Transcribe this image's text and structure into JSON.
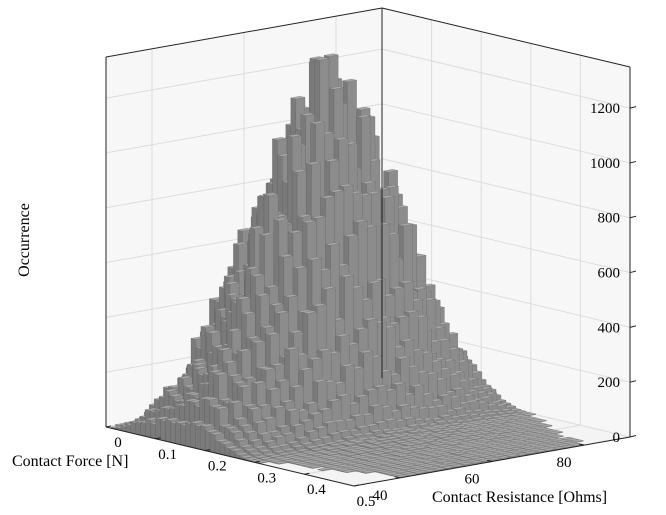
{
  "chart_data": {
    "type": "3d-histogram",
    "xlabel": "Contact Resistance [Ohms]",
    "ylabel": "Contact Force [N]",
    "zlabel": "Occurrence",
    "xlim": [
      0,
      0.5
    ],
    "ylim": [
      30,
      90
    ],
    "zlim": [
      0,
      1350
    ],
    "x_ticks": [
      "0",
      "0.1",
      "0.2",
      "0.3",
      "0.4",
      "0.5"
    ],
    "y_ticks": [
      "40",
      "60",
      "80"
    ],
    "z_ticks": [
      "0",
      "200",
      "400",
      "600",
      "800",
      "1000",
      "1200"
    ],
    "grid": true,
    "bar_color": "#8c8c8c",
    "resistance_profile": {
      "x": [
        0.0,
        0.01,
        0.02,
        0.03,
        0.04,
        0.05,
        0.06,
        0.07,
        0.08,
        0.09,
        0.1,
        0.11,
        0.12,
        0.13,
        0.14,
        0.15,
        0.16,
        0.17,
        0.18,
        0.19,
        0.2,
        0.21,
        0.22,
        0.23,
        0.24,
        0.25,
        0.26,
        0.27,
        0.28,
        0.29,
        0.3,
        0.35,
        0.4,
        0.45,
        0.5
      ],
      "peak_occurrence": [
        10,
        30,
        70,
        140,
        250,
        400,
        560,
        700,
        780,
        800,
        830,
        880,
        920,
        960,
        1020,
        1120,
        1200,
        1280,
        1300,
        1240,
        1100,
        950,
        800,
        640,
        480,
        330,
        220,
        130,
        70,
        40,
        25,
        15,
        10,
        8,
        6
      ]
    },
    "force_profile": {
      "y": [
        30,
        40,
        50,
        60,
        70,
        80,
        90
      ],
      "relative_weight": [
        0.05,
        0.3,
        0.75,
        1.0,
        0.7,
        0.3,
        0.05
      ]
    }
  }
}
